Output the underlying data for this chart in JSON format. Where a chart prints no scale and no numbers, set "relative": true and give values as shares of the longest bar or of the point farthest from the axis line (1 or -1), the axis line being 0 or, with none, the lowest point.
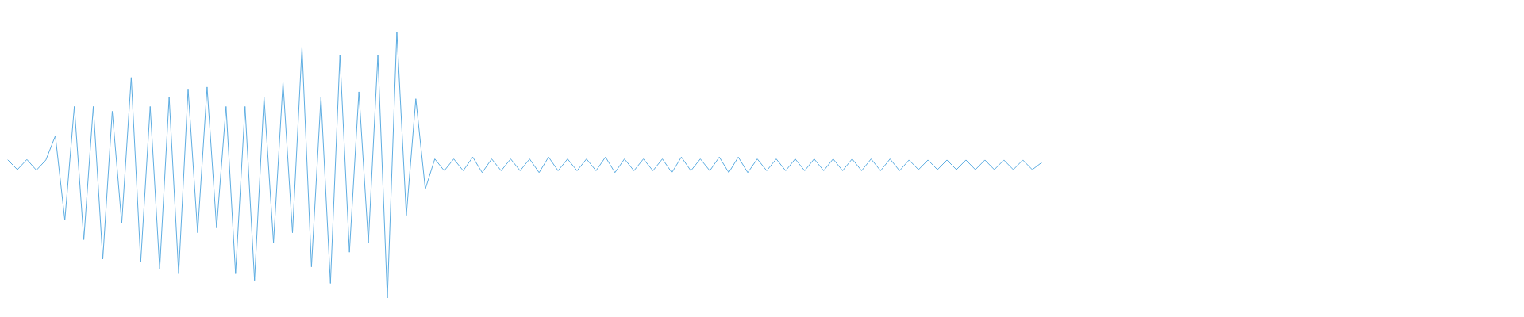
{
  "chart_data": {
    "type": "line",
    "relative": true,
    "categories": [
      null,
      null,
      null,
      null,
      null,
      null,
      null,
      null,
      null,
      null,
      null,
      null,
      null,
      null,
      null,
      null,
      null,
      null,
      null,
      null,
      null,
      null,
      null,
      null,
      null,
      null,
      null,
      null,
      null,
      null,
      null,
      null,
      null,
      null,
      null,
      null,
      null,
      null,
      null,
      null,
      null,
      null,
      null,
      null,
      null,
      null,
      null,
      null,
      null,
      null,
      null,
      null,
      null,
      null,
      null,
      null,
      null,
      null,
      null,
      null,
      null,
      null,
      null,
      null,
      null,
      null,
      null,
      null,
      null,
      null,
      null,
      null,
      null,
      null,
      null,
      null,
      null,
      null,
      null,
      null,
      null,
      null,
      null,
      null,
      null,
      null,
      null,
      null,
      null,
      null,
      null,
      null,
      null,
      null,
      null,
      null,
      null,
      null,
      null,
      null,
      null,
      null,
      null,
      null,
      null,
      null,
      null,
      null,
      null,
      null,
      null,
      null,
      null,
      null,
      null,
      null,
      null,
      null,
      null,
      null,
      null,
      null,
      null,
      null,
      null,
      null,
      null,
      null,
      null,
      null,
      null,
      null,
      null,
      null,
      null,
      null,
      null,
      null,
      null,
      null,
      null,
      null,
      null,
      null,
      null,
      null,
      null,
      null,
      null,
      null,
      null,
      null,
      null,
      null,
      null,
      null,
      null,
      null,
      null,
      null
    ],
    "series": [
      {
        "color": "#5dade2",
        "values": [
          0.518,
          0.482,
          0.52,
          0.48,
          0.518,
          0.609,
          0.292,
          0.719,
          0.219,
          0.719,
          0.146,
          0.701,
          0.281,
          0.828,
          0.135,
          0.719,
          0.109,
          0.755,
          0.091,
          0.785,
          0.245,
          0.792,
          0.263,
          0.719,
          0.091,
          0.719,
          0.066,
          0.755,
          0.208,
          0.81,
          0.245,
          0.942,
          0.117,
          0.755,
          0.055,
          0.912,
          0.172,
          0.774,
          0.208,
          0.912,
          0,
          1,
          0.31,
          0.748,
          0.409,
          0.522,
          0.478,
          0.522,
          0.478,
          0.529,
          0.471,
          0.522,
          0.478,
          0.522,
          0.478,
          0.522,
          0.471,
          0.529,
          0.478,
          0.522,
          0.478,
          0.522,
          0.478,
          0.529,
          0.471,
          0.522,
          0.478,
          0.522,
          0.478,
          0.522,
          0.471,
          0.529,
          0.478,
          0.522,
          0.478,
          0.529,
          0.471,
          0.529,
          0.471,
          0.522,
          0.478,
          0.522,
          0.478,
          0.522,
          0.478,
          0.522,
          0.478,
          0.522,
          0.478,
          0.522,
          0.478,
          0.522,
          0.478,
          0.522,
          0.478,
          0.518,
          0.482,
          0.518,
          0.482,
          0.518,
          0.482,
          0.518,
          0.482,
          0.518,
          0.482,
          0.518,
          0.482,
          0.518,
          0.482,
          0.509,
          null,
          null,
          null,
          null,
          null,
          null,
          null,
          null,
          null,
          null,
          null,
          null,
          null,
          null,
          null,
          null,
          null,
          null,
          null,
          null,
          null,
          null,
          null,
          null,
          null,
          null,
          null,
          null,
          null,
          null,
          null,
          null,
          null,
          null,
          null,
          null,
          null,
          null,
          null,
          null,
          null,
          null,
          null,
          null,
          null,
          null,
          null,
          null,
          null,
          null
        ]
      }
    ]
  }
}
